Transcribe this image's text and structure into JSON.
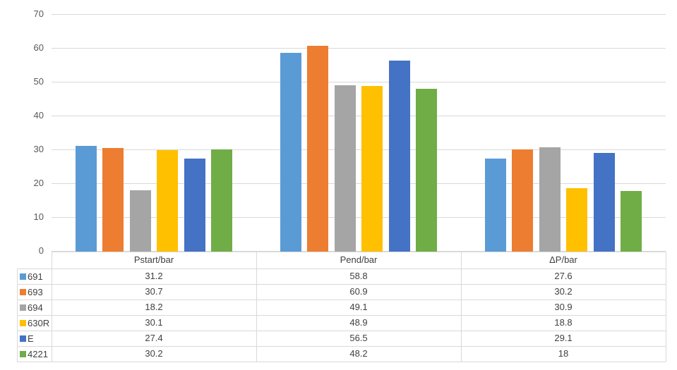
{
  "chart_data": {
    "type": "bar",
    "title": "",
    "categories": [
      "Pstart/bar",
      "Pend/bar",
      "ΔP/bar"
    ],
    "series": [
      {
        "name": "691",
        "color": "#5B9BD5",
        "values": [
          31.2,
          58.8,
          27.6
        ]
      },
      {
        "name": "693",
        "color": "#ED7D31",
        "values": [
          30.7,
          60.9,
          30.2
        ]
      },
      {
        "name": "694",
        "color": "#A5A5A5",
        "values": [
          18.2,
          49.1,
          30.9
        ]
      },
      {
        "name": "630R",
        "color": "#FFC000",
        "values": [
          30.1,
          48.9,
          18.8
        ]
      },
      {
        "name": "E",
        "color": "#4472C4",
        "values": [
          27.4,
          56.5,
          29.1
        ]
      },
      {
        "name": "4221",
        "color": "#70AD47",
        "values": [
          30.2,
          48.2,
          18
        ]
      }
    ],
    "y_axis": {
      "min": 0,
      "max": 70,
      "step": 10,
      "tick_labels": [
        "0",
        "10",
        "20",
        "30",
        "40",
        "50",
        "60",
        "70"
      ]
    },
    "grid": true,
    "legend_position": "data-table-left",
    "data_table_shown": true
  },
  "colors": {
    "background": "#FFFFFF",
    "gridline": "#D9D9D9",
    "table_border": "#D9D9D9",
    "axis_label_text": "#595959",
    "table_text": "#404040"
  }
}
